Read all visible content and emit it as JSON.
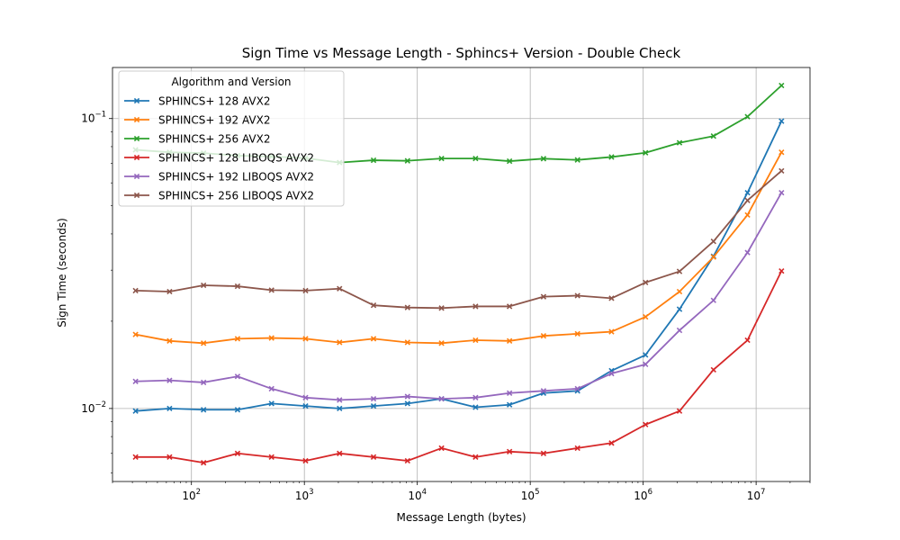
{
  "chart_data": {
    "type": "line",
    "title": "Sign Time vs Message Length - Sphincs+ Version - Double Check",
    "xlabel": "Message Length (bytes)",
    "ylabel": "Sign Time (seconds)",
    "xscale": "log",
    "yscale": "log",
    "xlim": [
      20,
      30000000
    ],
    "ylim": [
      0.0056,
      0.15
    ],
    "grid": true,
    "x_ticks": [
      {
        "value": 100,
        "base": "10",
        "exp": "2"
      },
      {
        "value": 1000,
        "base": "10",
        "exp": "3"
      },
      {
        "value": 10000,
        "base": "10",
        "exp": "4"
      },
      {
        "value": 100000,
        "base": "10",
        "exp": "5"
      },
      {
        "value": 1000000,
        "base": "10",
        "exp": "6"
      },
      {
        "value": 10000000,
        "base": "10",
        "exp": "7"
      }
    ],
    "y_ticks": [
      {
        "value": 0.01,
        "base": "10",
        "exp": "−2"
      },
      {
        "value": 0.1,
        "base": "10",
        "exp": "−1"
      }
    ],
    "legend": {
      "title": "Algorithm and Version",
      "placement": "upper-left"
    },
    "x": [
      32,
      64,
      128,
      256,
      512,
      1024,
      2048,
      4096,
      8192,
      16384,
      32768,
      65536,
      131072,
      262144,
      524288,
      1048576,
      2097152,
      4194304,
      8388608,
      16777216
    ],
    "series": [
      {
        "name": "SPHINCS+ 128 AVX2",
        "color": "#1f77b4",
        "values": [
          0.0098,
          0.01,
          0.0099,
          0.0099,
          0.0104,
          0.0102,
          0.01,
          0.0102,
          0.0104,
          0.0108,
          0.0101,
          0.0103,
          0.0113,
          0.0115,
          0.0135,
          0.0153,
          0.022,
          0.0335,
          0.0555,
          0.098
        ]
      },
      {
        "name": "SPHINCS+ 192 AVX2",
        "color": "#ff7f0e",
        "values": [
          0.018,
          0.0171,
          0.0168,
          0.0174,
          0.0175,
          0.0174,
          0.0169,
          0.0174,
          0.0169,
          0.0168,
          0.0172,
          0.0171,
          0.0178,
          0.0181,
          0.0184,
          0.0207,
          0.0253,
          0.0333,
          0.0465,
          0.0765
        ]
      },
      {
        "name": "SPHINCS+ 256 AVX2",
        "color": "#2ca02c",
        "values": [
          0.078,
          0.0765,
          0.076,
          0.0745,
          0.074,
          0.073,
          0.0705,
          0.0718,
          0.0715,
          0.0728,
          0.0728,
          0.0713,
          0.0727,
          0.072,
          0.0737,
          0.0762,
          0.0825,
          0.087,
          0.1015,
          0.13
        ]
      },
      {
        "name": "SPHINCS+ 128 LIBOQS AVX2",
        "color": "#d62728",
        "values": [
          0.0068,
          0.0068,
          0.0065,
          0.007,
          0.0068,
          0.0066,
          0.007,
          0.0068,
          0.0066,
          0.0073,
          0.0068,
          0.0071,
          0.007,
          0.0073,
          0.0076,
          0.0088,
          0.0098,
          0.0136,
          0.0172,
          0.0298
        ]
      },
      {
        "name": "SPHINCS+ 192 LIBOQS AVX2",
        "color": "#9467bd",
        "values": [
          0.0124,
          0.0125,
          0.0123,
          0.0129,
          0.0117,
          0.0109,
          0.0107,
          0.0108,
          0.011,
          0.0108,
          0.0109,
          0.0113,
          0.0115,
          0.0117,
          0.0132,
          0.0142,
          0.0186,
          0.0236,
          0.0345,
          0.0555
        ]
      },
      {
        "name": "SPHINCS+ 256 LIBOQS AVX2",
        "color": "#8c564b",
        "values": [
          0.0255,
          0.0253,
          0.0266,
          0.0264,
          0.0256,
          0.0255,
          0.0259,
          0.0227,
          0.0223,
          0.0222,
          0.0225,
          0.0225,
          0.0243,
          0.0245,
          0.024,
          0.0272,
          0.0297,
          0.0377,
          0.0522,
          0.066
        ]
      }
    ]
  }
}
